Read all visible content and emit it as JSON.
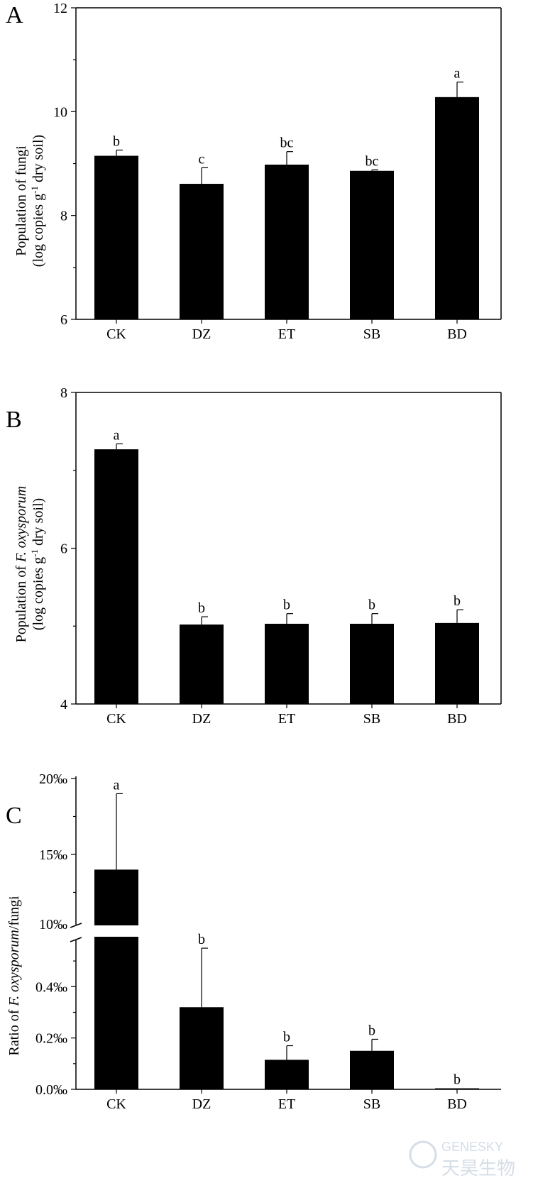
{
  "chart_data": [
    {
      "panel": "A",
      "type": "bar",
      "categories": [
        "CK",
        "DZ",
        "ET",
        "SB",
        "BD"
      ],
      "values": [
        9.15,
        8.61,
        8.98,
        8.86,
        10.28
      ],
      "errors": [
        0.11,
        0.31,
        0.25,
        0.02,
        0.29
      ],
      "significance": [
        "b",
        "c",
        "bc",
        "bc",
        "a"
      ],
      "ylabel": "Population of fungi",
      "ylabel2_pre": "(log copies g",
      "ylabel2_sup": "-1",
      "ylabel2_post": " dry soil)",
      "ylim": [
        6,
        12
      ],
      "yticks": [
        6,
        8,
        10,
        12
      ],
      "yticklabels": [
        "6",
        "8",
        "10",
        "12"
      ]
    },
    {
      "panel": "B",
      "type": "bar",
      "categories": [
        "CK",
        "DZ",
        "ET",
        "SB",
        "BD"
      ],
      "values": [
        7.27,
        5.02,
        5.03,
        5.03,
        5.04
      ],
      "errors": [
        0.07,
        0.1,
        0.13,
        0.13,
        0.17
      ],
      "significance": [
        "a",
        "b",
        "b",
        "b",
        "b"
      ],
      "ylabel_pre": "Population of ",
      "ylabel_italic": "F. oxysporum",
      "ylabel2_pre": "(log copies g",
      "ylabel2_sup": "-1",
      "ylabel2_post": " dry soil)",
      "ylim": [
        4,
        8
      ],
      "yticks": [
        4,
        6,
        8
      ],
      "yticklabels": [
        "4",
        "6",
        "8"
      ]
    },
    {
      "panel": "C",
      "type": "bar",
      "broken_axis": true,
      "categories": [
        "CK",
        "DZ",
        "ET",
        "SB",
        "BD"
      ],
      "values": [
        14.0,
        0.32,
        0.115,
        0.15,
        0.004
      ],
      "errors": [
        5.0,
        0.23,
        0.055,
        0.045,
        0.0
      ],
      "significance": [
        "a",
        "b",
        "b",
        "b",
        "b"
      ],
      "ylabel_pre": "Ratio of ",
      "ylabel_italic": "F. oxysporum",
      "ylabel_post": "/fungi",
      "lower_ylim": [
        0,
        0.6
      ],
      "upper_ylim": [
        10,
        20
      ],
      "lower_yticks": [
        0.0,
        0.2,
        0.4
      ],
      "lower_yticklabels": [
        "0.0‰",
        "0.2‰",
        "0.4‰"
      ],
      "upper_yticks": [
        10,
        15,
        20
      ],
      "upper_yticklabels": [
        "10‰",
        "15‰",
        "20‰"
      ]
    }
  ],
  "watermark": {
    "text_en": "GENESKY",
    "text_cn": "天昊生物"
  }
}
